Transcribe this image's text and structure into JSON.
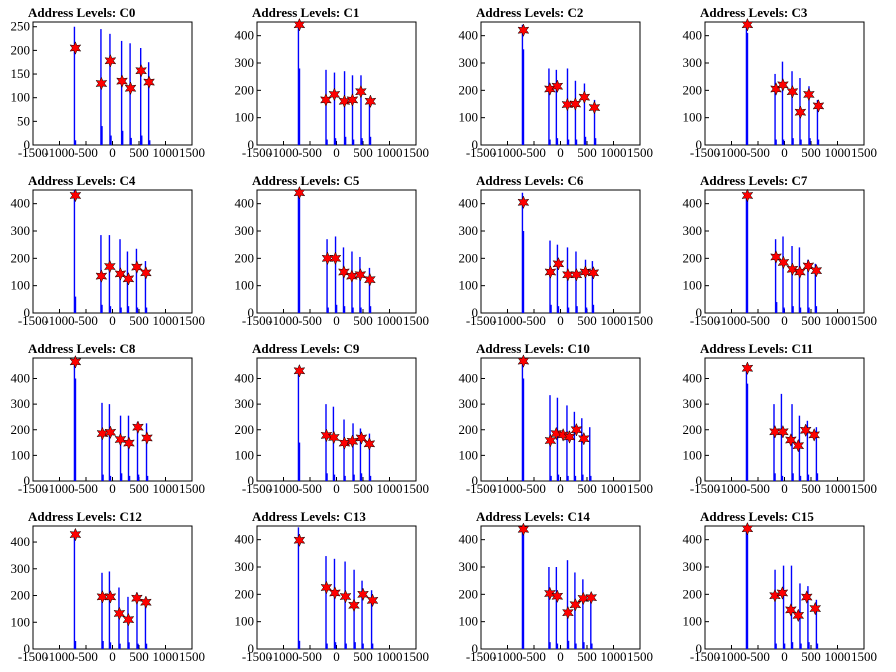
{
  "colors": {
    "bar": "#0000ff",
    "star": "#ff0000",
    "axis": "#000000"
  },
  "chart_data": [
    {
      "type": "bar",
      "title": "Address Levels: C0",
      "xlim": [
        -1500,
        1500
      ],
      "ylim": [
        0,
        260
      ],
      "xticks": [
        -1500,
        -1000,
        -500,
        0,
        500,
        1000,
        1500
      ],
      "yticks": [
        0,
        50,
        100,
        150,
        200,
        250
      ],
      "x": [
        -720,
        -700,
        -220,
        -200,
        -50,
        -30,
        170,
        190,
        330,
        350,
        530,
        550,
        680,
        700
      ],
      "values": [
        250,
        10,
        245,
        40,
        235,
        20,
        220,
        30,
        215,
        15,
        205,
        20,
        175,
        10
      ],
      "peaks": [
        {
          "x": -700,
          "y": 205
        },
        {
          "x": -210,
          "y": 130
        },
        {
          "x": -40,
          "y": 178
        },
        {
          "x": 180,
          "y": 135
        },
        {
          "x": 340,
          "y": 120
        },
        {
          "x": 540,
          "y": 157
        },
        {
          "x": 690,
          "y": 133
        }
      ]
    },
    {
      "type": "bar",
      "title": "Address Levels: C1",
      "xlim": [
        -1500,
        1500
      ],
      "ylim": [
        0,
        450
      ],
      "xticks": [
        -1500,
        -1000,
        -500,
        0,
        500,
        1000,
        1500
      ],
      "yticks": [
        0,
        100,
        200,
        300,
        400
      ],
      "x": [
        -720,
        -700,
        -200,
        -180,
        -40,
        -20,
        150,
        170,
        300,
        320,
        460,
        480,
        620,
        640
      ],
      "values": [
        430,
        280,
        275,
        20,
        265,
        25,
        270,
        30,
        255,
        20,
        255,
        25,
        170,
        30
      ],
      "peaks": [
        {
          "x": -700,
          "y": 440
        },
        {
          "x": -200,
          "y": 165
        },
        {
          "x": -40,
          "y": 185
        },
        {
          "x": 150,
          "y": 160
        },
        {
          "x": 300,
          "y": 165
        },
        {
          "x": 460,
          "y": 195
        },
        {
          "x": 640,
          "y": 160
        }
      ]
    },
    {
      "type": "bar",
      "title": "Address Levels: C2",
      "xlim": [
        -1500,
        1500
      ],
      "ylim": [
        0,
        450
      ],
      "xticks": [
        -1500,
        -1000,
        -500,
        0,
        500,
        1000,
        1500
      ],
      "yticks": [
        0,
        100,
        200,
        300,
        400
      ],
      "x": [
        -720,
        -700,
        -220,
        -200,
        -80,
        -60,
        130,
        150,
        280,
        300,
        450,
        470,
        640,
        660
      ],
      "values": [
        440,
        350,
        280,
        20,
        275,
        25,
        280,
        20,
        235,
        20,
        225,
        30,
        165,
        25
      ],
      "peaks": [
        {
          "x": -700,
          "y": 420
        },
        {
          "x": -200,
          "y": 205
        },
        {
          "x": -60,
          "y": 215
        },
        {
          "x": 130,
          "y": 148
        },
        {
          "x": 280,
          "y": 150
        },
        {
          "x": 450,
          "y": 175
        },
        {
          "x": 640,
          "y": 137
        }
      ]
    },
    {
      "type": "bar",
      "title": "Address Levels: C3",
      "xlim": [
        -1500,
        1500
      ],
      "ylim": [
        0,
        450
      ],
      "xticks": [
        -1500,
        -1000,
        -500,
        0,
        500,
        1000,
        1500
      ],
      "yticks": [
        0,
        100,
        200,
        300,
        400
      ],
      "x": [
        -720,
        -700,
        -180,
        -160,
        -40,
        -20,
        140,
        160,
        290,
        310,
        460,
        480,
        620,
        640
      ],
      "values": [
        440,
        410,
        260,
        20,
        305,
        20,
        270,
        25,
        245,
        20,
        215,
        25,
        165,
        20
      ],
      "peaks": [
        {
          "x": -700,
          "y": 440
        },
        {
          "x": -160,
          "y": 205
        },
        {
          "x": -30,
          "y": 220
        },
        {
          "x": 150,
          "y": 195
        },
        {
          "x": 300,
          "y": 120
        },
        {
          "x": 460,
          "y": 185
        },
        {
          "x": 640,
          "y": 143
        }
      ]
    },
    {
      "type": "bar",
      "title": "Address Levels: C4",
      "xlim": [
        -1500,
        1500
      ],
      "ylim": [
        0,
        450
      ],
      "xticks": [
        -1500,
        -1000,
        -500,
        0,
        500,
        1000,
        1500
      ],
      "yticks": [
        0,
        100,
        200,
        300,
        400
      ],
      "x": [
        -720,
        -700,
        -220,
        -200,
        -60,
        -40,
        140,
        160,
        280,
        300,
        450,
        470,
        620,
        640
      ],
      "values": [
        450,
        60,
        285,
        30,
        285,
        25,
        270,
        20,
        225,
        25,
        235,
        20,
        190,
        20
      ],
      "peaks": [
        {
          "x": -700,
          "y": 430
        },
        {
          "x": -210,
          "y": 135
        },
        {
          "x": -50,
          "y": 170
        },
        {
          "x": 150,
          "y": 143
        },
        {
          "x": 300,
          "y": 125
        },
        {
          "x": 460,
          "y": 168
        },
        {
          "x": 630,
          "y": 147
        }
      ]
    },
    {
      "type": "bar",
      "title": "Address Levels: C5",
      "xlim": [
        -1500,
        1500
      ],
      "ylim": [
        0,
        450
      ],
      "xticks": [
        -1500,
        -1000,
        -500,
        0,
        500,
        1000,
        1500
      ],
      "yticks": [
        0,
        100,
        200,
        300,
        400
      ],
      "x": [
        -720,
        -700,
        -180,
        -160,
        -20,
        0,
        130,
        150,
        290,
        310,
        440,
        460,
        620,
        640
      ],
      "values": [
        440,
        420,
        270,
        20,
        280,
        30,
        240,
        25,
        225,
        20,
        205,
        20,
        165,
        25
      ],
      "peaks": [
        {
          "x": -700,
          "y": 440
        },
        {
          "x": -170,
          "y": 200
        },
        {
          "x": -20,
          "y": 200
        },
        {
          "x": 140,
          "y": 150
        },
        {
          "x": 290,
          "y": 135
        },
        {
          "x": 450,
          "y": 140
        },
        {
          "x": 630,
          "y": 122
        }
      ]
    },
    {
      "type": "bar",
      "title": "Address Levels: C6",
      "xlim": [
        -1500,
        1500
      ],
      "ylim": [
        0,
        450
      ],
      "xticks": [
        -1500,
        -1000,
        -500,
        0,
        500,
        1000,
        1500
      ],
      "yticks": [
        0,
        100,
        200,
        300,
        400
      ],
      "x": [
        -720,
        -700,
        -200,
        -180,
        -60,
        -40,
        130,
        150,
        290,
        310,
        470,
        490,
        600,
        620
      ],
      "values": [
        440,
        300,
        265,
        30,
        250,
        25,
        240,
        20,
        225,
        25,
        195,
        20,
        190,
        30
      ],
      "peaks": [
        {
          "x": -700,
          "y": 405
        },
        {
          "x": -190,
          "y": 150
        },
        {
          "x": -40,
          "y": 180
        },
        {
          "x": 140,
          "y": 140
        },
        {
          "x": 300,
          "y": 140
        },
        {
          "x": 470,
          "y": 150
        },
        {
          "x": 620,
          "y": 147
        }
      ]
    },
    {
      "type": "bar",
      "title": "Address Levels: C7",
      "xlim": [
        -1500,
        1500
      ],
      "ylim": [
        0,
        450
      ],
      "xticks": [
        -1500,
        -1000,
        -500,
        0,
        500,
        1000,
        1500
      ],
      "yticks": [
        0,
        100,
        200,
        300,
        400
      ],
      "x": [
        -720,
        -700,
        -170,
        -150,
        -30,
        -10,
        140,
        160,
        280,
        300,
        440,
        460,
        580,
        600
      ],
      "values": [
        440,
        420,
        270,
        40,
        280,
        20,
        245,
        25,
        240,
        20,
        195,
        20,
        180,
        25
      ],
      "peaks": [
        {
          "x": -700,
          "y": 430
        },
        {
          "x": -160,
          "y": 205
        },
        {
          "x": -20,
          "y": 185
        },
        {
          "x": 150,
          "y": 160
        },
        {
          "x": 290,
          "y": 150
        },
        {
          "x": 450,
          "y": 172
        },
        {
          "x": 600,
          "y": 155
        }
      ]
    },
    {
      "type": "bar",
      "title": "Address Levels: C8",
      "xlim": [
        -1500,
        1500
      ],
      "ylim": [
        0,
        480
      ],
      "xticks": [
        -1500,
        -1000,
        -500,
        0,
        500,
        1000,
        1500
      ],
      "yticks": [
        0,
        100,
        200,
        300,
        400
      ],
      "x": [
        -720,
        -700,
        -200,
        -180,
        -60,
        -40,
        150,
        170,
        300,
        320,
        470,
        490,
        640,
        660
      ],
      "values": [
        465,
        400,
        305,
        25,
        300,
        20,
        255,
        30,
        255,
        20,
        230,
        25,
        225,
        20
      ],
      "peaks": [
        {
          "x": -700,
          "y": 465
        },
        {
          "x": -190,
          "y": 185
        },
        {
          "x": -40,
          "y": 190
        },
        {
          "x": 150,
          "y": 162
        },
        {
          "x": 310,
          "y": 148
        },
        {
          "x": 480,
          "y": 210
        },
        {
          "x": 650,
          "y": 168
        }
      ]
    },
    {
      "type": "bar",
      "title": "Address Levels: C9",
      "xlim": [
        -1500,
        1500
      ],
      "ylim": [
        0,
        480
      ],
      "xticks": [
        -1500,
        -1000,
        -500,
        0,
        500,
        1000,
        1500
      ],
      "yticks": [
        0,
        100,
        200,
        300,
        400
      ],
      "x": [
        -720,
        -700,
        -200,
        -180,
        -60,
        -40,
        140,
        160,
        310,
        330,
        450,
        470,
        620,
        640
      ],
      "values": [
        435,
        150,
        300,
        30,
        290,
        25,
        240,
        20,
        225,
        25,
        205,
        30,
        185,
        20
      ],
      "peaks": [
        {
          "x": -700,
          "y": 430
        },
        {
          "x": -190,
          "y": 178
        },
        {
          "x": -50,
          "y": 170
        },
        {
          "x": 150,
          "y": 148
        },
        {
          "x": 300,
          "y": 155
        },
        {
          "x": 470,
          "y": 168
        },
        {
          "x": 620,
          "y": 145
        }
      ]
    },
    {
      "type": "bar",
      "title": "Address Levels: C10",
      "xlim": [
        -1500,
        1500
      ],
      "ylim": [
        0,
        480
      ],
      "xticks": [
        -1500,
        -1000,
        -500,
        0,
        500,
        1000,
        1500
      ],
      "yticks": [
        0,
        100,
        200,
        300,
        400
      ],
      "x": [
        -720,
        -700,
        -200,
        -180,
        -60,
        -40,
        120,
        140,
        260,
        280,
        400,
        420,
        550,
        570
      ],
      "values": [
        470,
        400,
        335,
        20,
        325,
        25,
        295,
        20,
        270,
        20,
        245,
        25,
        210,
        20
      ],
      "peaks": [
        {
          "x": -700,
          "y": 468
        },
        {
          "x": -190,
          "y": 158
        },
        {
          "x": -80,
          "y": 185
        },
        {
          "x": 50,
          "y": 180
        },
        {
          "x": 170,
          "y": 172
        },
        {
          "x": 300,
          "y": 200
        },
        {
          "x": 440,
          "y": 165
        }
      ]
    },
    {
      "type": "bar",
      "title": "Address Levels: C11",
      "xlim": [
        -1500,
        1500
      ],
      "ylim": [
        0,
        480
      ],
      "xticks": [
        -1500,
        -1000,
        -500,
        0,
        500,
        1000,
        1500
      ],
      "yticks": [
        0,
        100,
        200,
        300,
        400
      ],
      "x": [
        -720,
        -700,
        -200,
        -180,
        -60,
        -40,
        140,
        160,
        280,
        300,
        430,
        450,
        600,
        620
      ],
      "values": [
        440,
        380,
        300,
        30,
        340,
        20,
        300,
        30,
        255,
        20,
        235,
        25,
        210,
        30
      ],
      "peaks": [
        {
          "x": -700,
          "y": 440
        },
        {
          "x": -180,
          "y": 192
        },
        {
          "x": -30,
          "y": 192
        },
        {
          "x": 120,
          "y": 160
        },
        {
          "x": 260,
          "y": 138
        },
        {
          "x": 400,
          "y": 198
        },
        {
          "x": 560,
          "y": 180
        }
      ]
    },
    {
      "type": "bar",
      "title": "Address Levels: C12",
      "xlim": [
        -1500,
        1500
      ],
      "ylim": [
        0,
        460
      ],
      "xticks": [
        -1500,
        -1000,
        -500,
        0,
        500,
        1000,
        1500
      ],
      "yticks": [
        0,
        100,
        200,
        300,
        400
      ],
      "x": [
        -720,
        -700,
        -200,
        -180,
        -60,
        -40,
        120,
        140,
        290,
        310,
        460,
        480,
        620,
        640
      ],
      "values": [
        440,
        30,
        285,
        30,
        290,
        25,
        230,
        20,
        195,
        25,
        210,
        20,
        180,
        20
      ],
      "peaks": [
        {
          "x": -700,
          "y": 428
        },
        {
          "x": -190,
          "y": 195
        },
        {
          "x": -40,
          "y": 195
        },
        {
          "x": 130,
          "y": 133
        },
        {
          "x": 300,
          "y": 110
        },
        {
          "x": 460,
          "y": 190
        },
        {
          "x": 630,
          "y": 175
        }
      ]
    },
    {
      "type": "bar",
      "title": "Address Levels: C13",
      "xlim": [
        -1500,
        1500
      ],
      "ylim": [
        0,
        450
      ],
      "xticks": [
        -1500,
        -1000,
        -500,
        0,
        500,
        1000,
        1500
      ],
      "yticks": [
        0,
        100,
        200,
        300,
        400
      ],
      "x": [
        -720,
        -700,
        -200,
        -180,
        -40,
        -20,
        160,
        180,
        330,
        350,
        480,
        500,
        660,
        680
      ],
      "values": [
        445,
        30,
        340,
        20,
        330,
        25,
        320,
        20,
        290,
        25,
        250,
        20,
        215,
        20
      ],
      "peaks": [
        {
          "x": -700,
          "y": 398
        },
        {
          "x": -190,
          "y": 225
        },
        {
          "x": -30,
          "y": 205
        },
        {
          "x": 170,
          "y": 192
        },
        {
          "x": 330,
          "y": 160
        },
        {
          "x": 500,
          "y": 200
        },
        {
          "x": 680,
          "y": 178
        }
      ]
    },
    {
      "type": "bar",
      "title": "Address Levels: C14",
      "xlim": [
        -1500,
        1500
      ],
      "ylim": [
        0,
        450
      ],
      "xticks": [
        -1500,
        -1000,
        -500,
        0,
        500,
        1000,
        1500
      ],
      "yticks": [
        0,
        100,
        200,
        300,
        400
      ],
      "x": [
        -720,
        -700,
        -220,
        -200,
        -80,
        -60,
        130,
        150,
        270,
        290,
        420,
        440,
        570,
        590
      ],
      "values": [
        445,
        420,
        300,
        25,
        300,
        20,
        325,
        30,
        280,
        20,
        255,
        25,
        200,
        20
      ],
      "peaks": [
        {
          "x": -700,
          "y": 438
        },
        {
          "x": -200,
          "y": 203
        },
        {
          "x": -60,
          "y": 193
        },
        {
          "x": 140,
          "y": 133
        },
        {
          "x": 280,
          "y": 162
        },
        {
          "x": 430,
          "y": 185
        },
        {
          "x": 580,
          "y": 188
        }
      ]
    },
    {
      "type": "bar",
      "title": "Address Levels: C15",
      "xlim": [
        -1500,
        1500
      ],
      "ylim": [
        0,
        450
      ],
      "xticks": [
        -1500,
        -1000,
        -500,
        0,
        500,
        1000,
        1500
      ],
      "yticks": [
        0,
        100,
        200,
        300,
        400
      ],
      "x": [
        -720,
        -700,
        -180,
        -160,
        -20,
        0,
        130,
        150,
        290,
        310,
        440,
        460,
        600,
        620
      ],
      "values": [
        440,
        420,
        290,
        20,
        305,
        20,
        305,
        25,
        240,
        20,
        230,
        25,
        180,
        20
      ],
      "peaks": [
        {
          "x": -700,
          "y": 440
        },
        {
          "x": -180,
          "y": 195
        },
        {
          "x": -40,
          "y": 205
        },
        {
          "x": 120,
          "y": 143
        },
        {
          "x": 260,
          "y": 123
        },
        {
          "x": 420,
          "y": 190
        },
        {
          "x": 580,
          "y": 148
        }
      ]
    }
  ]
}
